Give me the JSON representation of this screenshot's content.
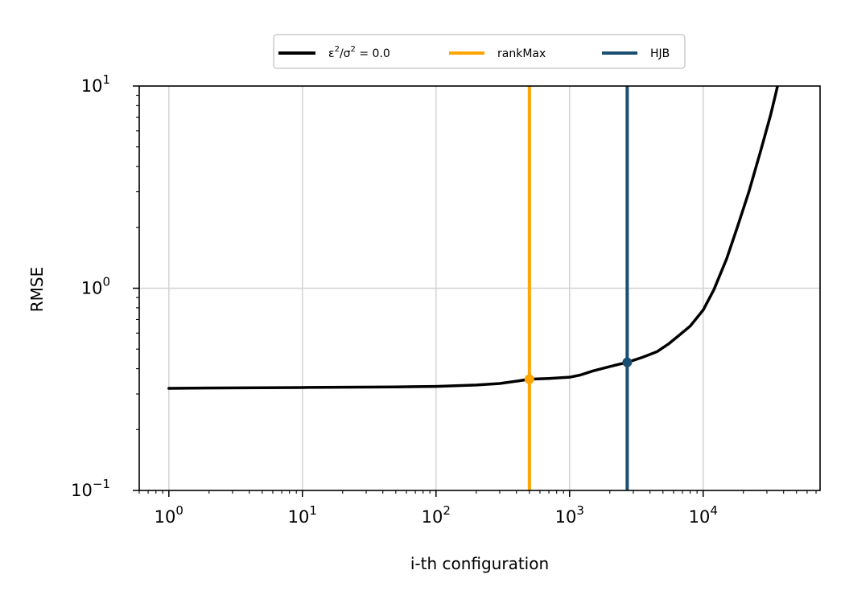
{
  "chart_data": {
    "type": "line",
    "xlabel": "i-th configuration",
    "ylabel": "RMSE",
    "xscale": "log",
    "yscale": "log",
    "xlim": [
      0.6,
      75000
    ],
    "ylim": [
      0.1,
      10
    ],
    "grid": true,
    "legend_placement": "top-center, above plot",
    "x_ticks": [
      {
        "base": "10",
        "exp": "0"
      },
      {
        "base": "10",
        "exp": "1"
      },
      {
        "base": "10",
        "exp": "2"
      },
      {
        "base": "10",
        "exp": "3"
      },
      {
        "base": "10",
        "exp": "4"
      }
    ],
    "y_ticks": [
      {
        "base": "10",
        "exp": "−1"
      },
      {
        "base": "10",
        "exp": "0"
      },
      {
        "base": "10",
        "exp": "1"
      }
    ],
    "series": [
      {
        "name": "ε²/σ² = 0.0",
        "legend_label": {
          "eps": "ε",
          "sup1": "2",
          "slash": "/σ",
          "sup2": "2",
          "rest": " = 0.0"
        },
        "kind": "line",
        "color": "#000000",
        "x": [
          1,
          10,
          50,
          100,
          200,
          300,
          400,
          500,
          700,
          1000,
          1200,
          1500,
          2000,
          2700,
          3500,
          4500,
          5500,
          6500,
          8000,
          10000,
          12000,
          15000,
          18000,
          22000,
          27000,
          32000,
          35000,
          37000,
          38000
        ],
        "y": [
          0.32,
          0.323,
          0.325,
          0.327,
          0.332,
          0.338,
          0.347,
          0.355,
          0.358,
          0.363,
          0.372,
          0.39,
          0.41,
          0.43,
          0.455,
          0.485,
          0.53,
          0.58,
          0.65,
          0.78,
          0.98,
          1.4,
          2.0,
          3.0,
          4.8,
          7.2,
          9.2,
          10.8,
          12.0
        ]
      },
      {
        "name": "rankMax",
        "kind": "vline",
        "color": "#FFA500",
        "x": 500,
        "marker_y": 0.355
      },
      {
        "name": "HJB",
        "kind": "vline",
        "color": "#1B4F72",
        "x": 2700,
        "marker_y": 0.43
      }
    ]
  }
}
